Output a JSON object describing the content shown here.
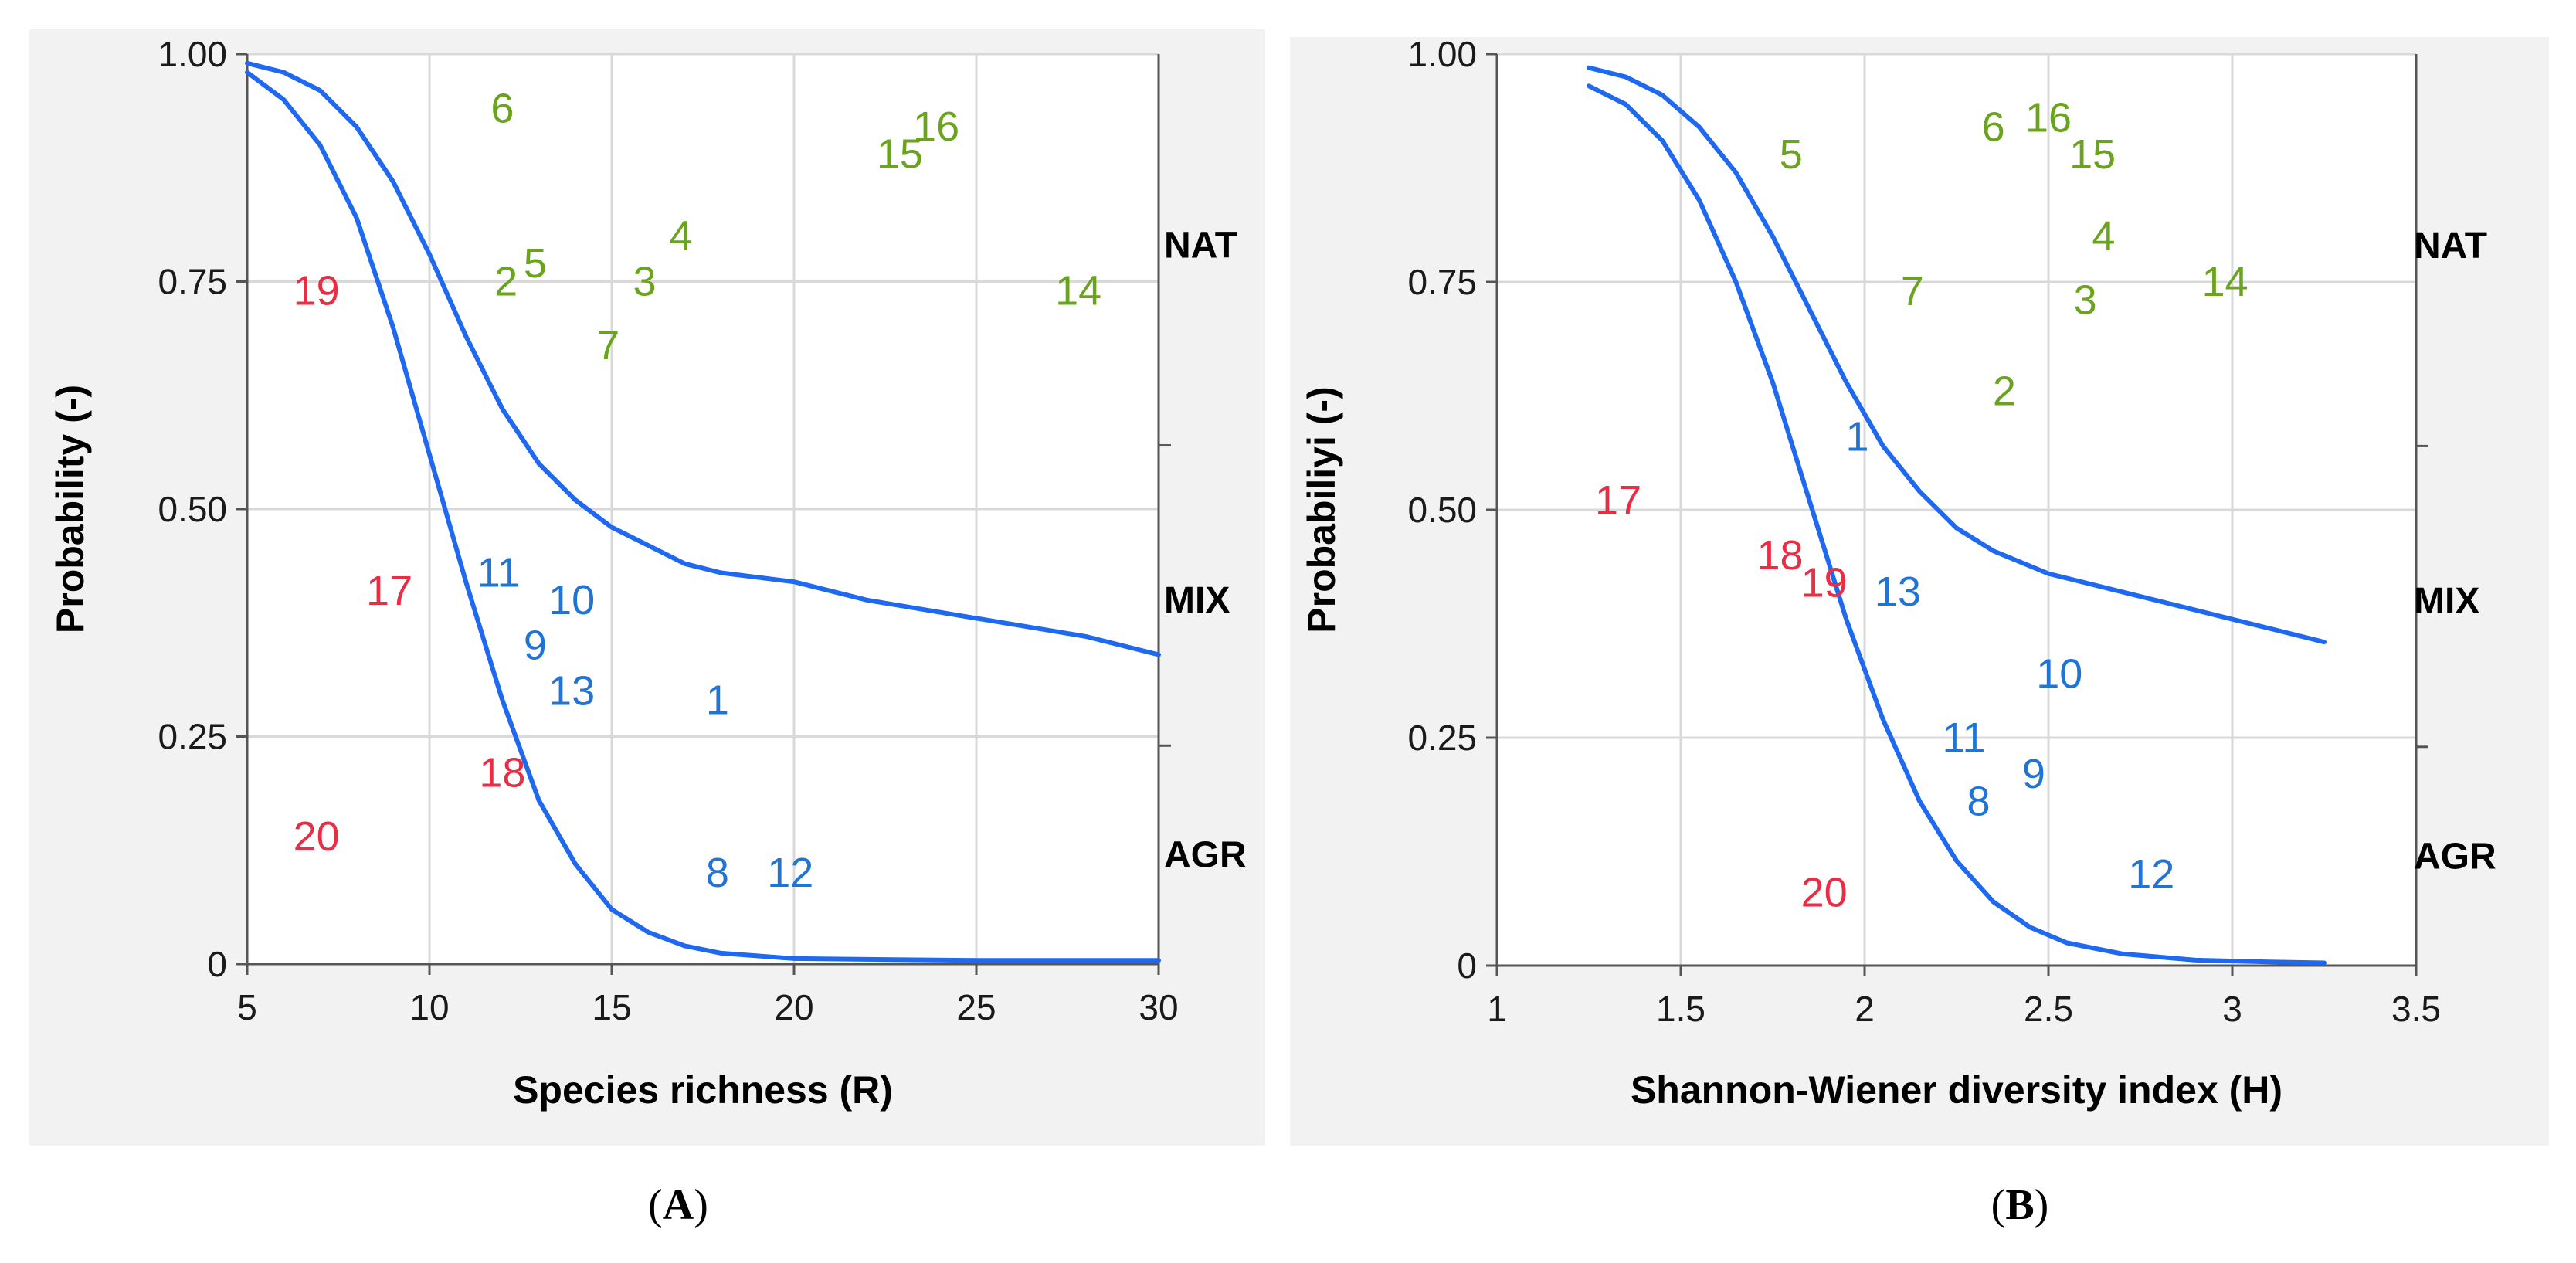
{
  "colors": {
    "nat": "#6aa31e",
    "mix": "#1f74d6",
    "agr": "#ea2c44",
    "curve": "#1f68f0",
    "grid": "#d9d9d9",
    "panel_bg": "#f2f2f2"
  },
  "captions": {
    "a": "A",
    "b": "B"
  },
  "chart_data": [
    {
      "type": "scatter",
      "panel": "A",
      "xlabel": "Species richness (R)",
      "ylabel": "Probability (-)",
      "xlim": [
        5,
        30
      ],
      "ylim": [
        0,
        1
      ],
      "xticks": [
        "5",
        "10",
        "15",
        "20",
        "25",
        "30"
      ],
      "yticks": [
        "0",
        "0.25",
        "0.50",
        "0.75",
        "1.00"
      ],
      "categories": [
        "NAT",
        "MIX",
        "AGR"
      ],
      "category_positions": [
        0.79,
        0.4,
        0.12
      ],
      "right_ticks": [
        0.57,
        0.24
      ],
      "curves": [
        {
          "name": "boundary-upper",
          "points": [
            [
              5,
              0.99
            ],
            [
              6,
              0.98
            ],
            [
              7,
              0.96
            ],
            [
              8,
              0.92
            ],
            [
              9,
              0.86
            ],
            [
              10,
              0.78
            ],
            [
              11,
              0.69
            ],
            [
              12,
              0.61
            ],
            [
              13,
              0.55
            ],
            [
              14,
              0.51
            ],
            [
              15,
              0.48
            ],
            [
              16,
              0.46
            ],
            [
              17,
              0.44
            ],
            [
              18,
              0.43
            ],
            [
              20,
              0.42
            ],
            [
              22,
              0.4
            ],
            [
              25,
              0.38
            ],
            [
              28,
              0.36
            ],
            [
              30,
              0.34
            ]
          ]
        },
        {
          "name": "boundary-lower",
          "points": [
            [
              5,
              0.98
            ],
            [
              6,
              0.95
            ],
            [
              7,
              0.9
            ],
            [
              8,
              0.82
            ],
            [
              9,
              0.7
            ],
            [
              10,
              0.56
            ],
            [
              11,
              0.42
            ],
            [
              12,
              0.29
            ],
            [
              13,
              0.18
            ],
            [
              14,
              0.11
            ],
            [
              15,
              0.06
            ],
            [
              16,
              0.035
            ],
            [
              17,
              0.02
            ],
            [
              18,
              0.012
            ],
            [
              20,
              0.006
            ],
            [
              25,
              0.004
            ],
            [
              30,
              0.004
            ]
          ]
        }
      ],
      "points": [
        {
          "label": "6",
          "x": 12.0,
          "y": 0.94,
          "group": "NAT"
        },
        {
          "label": "16",
          "x": 23.9,
          "y": 0.92,
          "group": "NAT"
        },
        {
          "label": "15",
          "x": 22.9,
          "y": 0.89,
          "group": "NAT"
        },
        {
          "label": "4",
          "x": 16.9,
          "y": 0.8,
          "group": "NAT"
        },
        {
          "label": "5",
          "x": 12.9,
          "y": 0.77,
          "group": "NAT"
        },
        {
          "label": "2",
          "x": 12.1,
          "y": 0.75,
          "group": "NAT"
        },
        {
          "label": "3",
          "x": 15.9,
          "y": 0.75,
          "group": "NAT"
        },
        {
          "label": "14",
          "x": 27.8,
          "y": 0.74,
          "group": "NAT"
        },
        {
          "label": "7",
          "x": 14.9,
          "y": 0.68,
          "group": "NAT"
        },
        {
          "label": "19",
          "x": 6.9,
          "y": 0.74,
          "group": "AGR"
        },
        {
          "label": "17",
          "x": 8.9,
          "y": 0.41,
          "group": "AGR"
        },
        {
          "label": "18",
          "x": 12.0,
          "y": 0.21,
          "group": "AGR"
        },
        {
          "label": "20",
          "x": 6.9,
          "y": 0.14,
          "group": "AGR"
        },
        {
          "label": "11",
          "x": 11.9,
          "y": 0.43,
          "group": "MIX"
        },
        {
          "label": "10",
          "x": 13.9,
          "y": 0.4,
          "group": "MIX"
        },
        {
          "label": "9",
          "x": 12.9,
          "y": 0.35,
          "group": "MIX"
        },
        {
          "label": "13",
          "x": 13.9,
          "y": 0.3,
          "group": "MIX"
        },
        {
          "label": "1",
          "x": 17.9,
          "y": 0.29,
          "group": "MIX"
        },
        {
          "label": "8",
          "x": 17.9,
          "y": 0.1,
          "group": "MIX"
        },
        {
          "label": "12",
          "x": 19.9,
          "y": 0.1,
          "group": "MIX"
        }
      ]
    },
    {
      "type": "scatter",
      "panel": "B",
      "xlabel": "Shannon-Wiener diversity index (H)",
      "ylabel": "Probabiliyi (-)",
      "xlim": [
        1,
        3.5
      ],
      "ylim": [
        0,
        1
      ],
      "xticks": [
        "1",
        "1.5",
        "2",
        "2.5",
        "3",
        "3.5"
      ],
      "yticks": [
        "0",
        "0.25",
        "0.50",
        "0.75",
        "1.00"
      ],
      "categories": [
        "NAT",
        "MIX",
        "AGR"
      ],
      "category_positions": [
        0.79,
        0.4,
        0.12
      ],
      "right_ticks": [
        0.57,
        0.24
      ],
      "curves": [
        {
          "name": "boundary-upper",
          "points": [
            [
              1.25,
              0.985
            ],
            [
              1.35,
              0.975
            ],
            [
              1.45,
              0.955
            ],
            [
              1.55,
              0.92
            ],
            [
              1.65,
              0.87
            ],
            [
              1.75,
              0.8
            ],
            [
              1.85,
              0.72
            ],
            [
              1.95,
              0.64
            ],
            [
              2.05,
              0.57
            ],
            [
              2.15,
              0.52
            ],
            [
              2.25,
              0.48
            ],
            [
              2.35,
              0.455
            ],
            [
              2.5,
              0.43
            ],
            [
              2.7,
              0.41
            ],
            [
              2.9,
              0.39
            ],
            [
              3.1,
              0.37
            ],
            [
              3.25,
              0.355
            ]
          ]
        },
        {
          "name": "boundary-lower",
          "points": [
            [
              1.25,
              0.965
            ],
            [
              1.35,
              0.945
            ],
            [
              1.45,
              0.905
            ],
            [
              1.55,
              0.84
            ],
            [
              1.65,
              0.75
            ],
            [
              1.75,
              0.64
            ],
            [
              1.85,
              0.51
            ],
            [
              1.95,
              0.38
            ],
            [
              2.05,
              0.27
            ],
            [
              2.15,
              0.18
            ],
            [
              2.25,
              0.115
            ],
            [
              2.35,
              0.07
            ],
            [
              2.45,
              0.042
            ],
            [
              2.55,
              0.025
            ],
            [
              2.7,
              0.013
            ],
            [
              2.9,
              0.006
            ],
            [
              3.1,
              0.004
            ],
            [
              3.25,
              0.003
            ]
          ]
        }
      ],
      "points": [
        {
          "label": "5",
          "x": 1.8,
          "y": 0.89,
          "group": "NAT"
        },
        {
          "label": "6",
          "x": 2.35,
          "y": 0.92,
          "group": "NAT"
        },
        {
          "label": "16",
          "x": 2.5,
          "y": 0.93,
          "group": "NAT"
        },
        {
          "label": "15",
          "x": 2.62,
          "y": 0.89,
          "group": "NAT"
        },
        {
          "label": "4",
          "x": 2.65,
          "y": 0.8,
          "group": "NAT"
        },
        {
          "label": "7",
          "x": 2.13,
          "y": 0.74,
          "group": "NAT"
        },
        {
          "label": "3",
          "x": 2.6,
          "y": 0.73,
          "group": "NAT"
        },
        {
          "label": "14",
          "x": 2.98,
          "y": 0.75,
          "group": "NAT"
        },
        {
          "label": "2",
          "x": 2.38,
          "y": 0.63,
          "group": "NAT"
        },
        {
          "label": "1",
          "x": 1.98,
          "y": 0.58,
          "group": "MIX"
        },
        {
          "label": "13",
          "x": 2.09,
          "y": 0.41,
          "group": "MIX"
        },
        {
          "label": "10",
          "x": 2.53,
          "y": 0.32,
          "group": "MIX"
        },
        {
          "label": "11",
          "x": 2.27,
          "y": 0.25,
          "group": "MIX"
        },
        {
          "label": "9",
          "x": 2.46,
          "y": 0.21,
          "group": "MIX"
        },
        {
          "label": "8",
          "x": 2.31,
          "y": 0.18,
          "group": "MIX"
        },
        {
          "label": "12",
          "x": 2.78,
          "y": 0.1,
          "group": "MIX"
        },
        {
          "label": "17",
          "x": 1.33,
          "y": 0.51,
          "group": "AGR"
        },
        {
          "label": "18",
          "x": 1.77,
          "y": 0.45,
          "group": "AGR"
        },
        {
          "label": "19",
          "x": 1.89,
          "y": 0.42,
          "group": "AGR"
        },
        {
          "label": "20",
          "x": 1.89,
          "y": 0.08,
          "group": "AGR"
        }
      ]
    }
  ]
}
